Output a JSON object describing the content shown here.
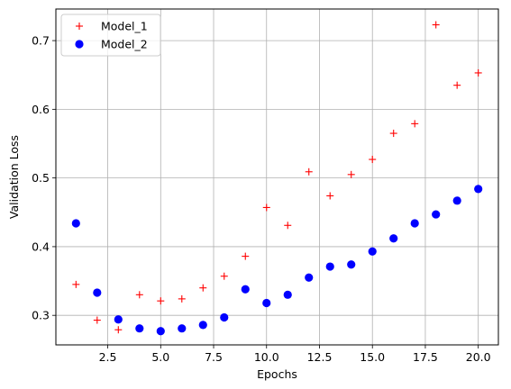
{
  "chart_data": {
    "type": "scatter",
    "xlabel": "Epochs",
    "ylabel": "Validation Loss",
    "xlim": [
      0.05,
      20.95
    ],
    "ylim": [
      0.257,
      0.746
    ],
    "xticks": [
      2.5,
      5.0,
      7.5,
      10.0,
      12.5,
      15.0,
      17.5,
      20.0
    ],
    "xtick_labels": [
      "2.5",
      "5.0",
      "7.5",
      "10.0",
      "12.5",
      "15.0",
      "17.5",
      "20.0"
    ],
    "yticks": [
      0.3,
      0.4,
      0.5,
      0.6,
      0.7
    ],
    "ytick_labels": [
      "0.3",
      "0.4",
      "0.5",
      "0.6",
      "0.7"
    ],
    "grid": true,
    "legend_position": "upper-left",
    "series": [
      {
        "name": "Model_1",
        "marker": "plus",
        "color": "#ff0000",
        "x": [
          1,
          2,
          3,
          4,
          5,
          6,
          7,
          8,
          9,
          10,
          11,
          12,
          13,
          14,
          15,
          16,
          17,
          18,
          19,
          20
        ],
        "y": [
          0.345,
          0.293,
          0.279,
          0.33,
          0.321,
          0.324,
          0.34,
          0.357,
          0.386,
          0.457,
          0.431,
          0.509,
          0.474,
          0.505,
          0.527,
          0.565,
          0.579,
          0.723,
          0.635,
          0.653
        ]
      },
      {
        "name": "Model_2",
        "marker": "circle",
        "color": "#0000ff",
        "x": [
          1,
          2,
          3,
          4,
          5,
          6,
          7,
          8,
          9,
          10,
          11,
          12,
          13,
          14,
          15,
          16,
          17,
          18,
          19,
          20
        ],
        "y": [
          0.434,
          0.333,
          0.294,
          0.281,
          0.277,
          0.281,
          0.286,
          0.297,
          0.338,
          0.318,
          0.33,
          0.355,
          0.371,
          0.374,
          0.393,
          0.412,
          0.434,
          0.447,
          0.467,
          0.484
        ]
      }
    ]
  }
}
